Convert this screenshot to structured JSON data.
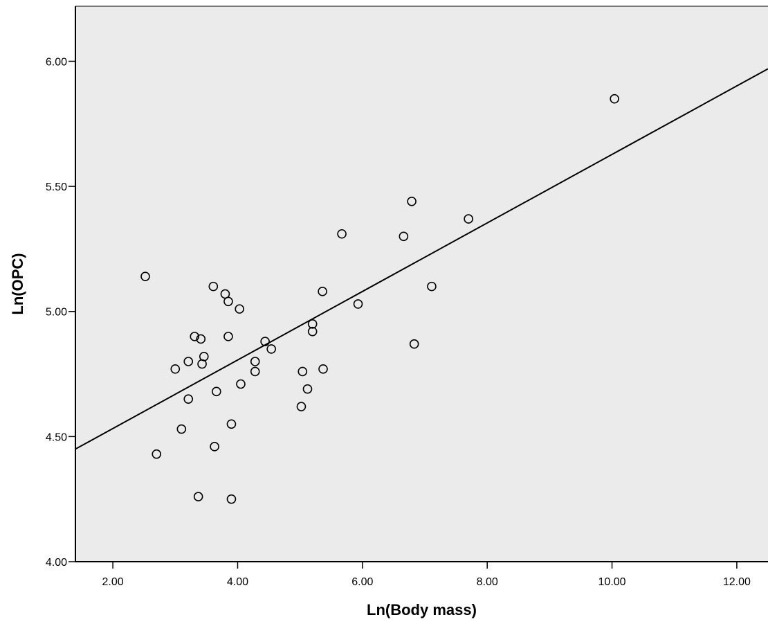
{
  "colors": {
    "plot_background": "#ebebeb",
    "axis": "#000000",
    "marker_stroke": "#000000",
    "fit_line": "#000000"
  },
  "chart_data": {
    "type": "scatter",
    "title": "",
    "xlabel": "Ln(Body mass)",
    "ylabel": "Ln(OPC)",
    "xlim": [
      1.4,
      12.5
    ],
    "ylim": [
      4.0,
      6.22
    ],
    "xticks": [
      2.0,
      4.0,
      6.0,
      8.0,
      10.0,
      12.0
    ],
    "xtick_labels": [
      "2.00",
      "4.00",
      "6.00",
      "8.00",
      "10.00",
      "12.00"
    ],
    "yticks": [
      4.0,
      4.5,
      5.0,
      5.5,
      6.0
    ],
    "ytick_labels": [
      "4.00",
      "4.50",
      "5.00",
      "5.50",
      "6.00"
    ],
    "grid": false,
    "legend": "none",
    "marker": "open-circle",
    "fit_line": {
      "x": [
        1.4,
        12.5
      ],
      "y": [
        4.45,
        5.97
      ]
    },
    "points": [
      {
        "x": 2.52,
        "y": 5.14
      },
      {
        "x": 2.7,
        "y": 4.43
      },
      {
        "x": 3.0,
        "y": 4.77
      },
      {
        "x": 3.1,
        "y": 4.53
      },
      {
        "x": 3.21,
        "y": 4.8
      },
      {
        "x": 3.21,
        "y": 4.65
      },
      {
        "x": 3.31,
        "y": 4.9
      },
      {
        "x": 3.37,
        "y": 4.26
      },
      {
        "x": 3.41,
        "y": 4.89
      },
      {
        "x": 3.43,
        "y": 4.79
      },
      {
        "x": 3.46,
        "y": 4.82
      },
      {
        "x": 3.61,
        "y": 5.1
      },
      {
        "x": 3.63,
        "y": 4.46
      },
      {
        "x": 3.66,
        "y": 4.68
      },
      {
        "x": 3.8,
        "y": 5.07
      },
      {
        "x": 3.85,
        "y": 5.04
      },
      {
        "x": 3.85,
        "y": 4.9
      },
      {
        "x": 3.9,
        "y": 4.55
      },
      {
        "x": 3.9,
        "y": 4.25
      },
      {
        "x": 4.03,
        "y": 5.01
      },
      {
        "x": 4.05,
        "y": 4.71
      },
      {
        "x": 4.28,
        "y": 4.8
      },
      {
        "x": 4.28,
        "y": 4.76
      },
      {
        "x": 4.44,
        "y": 4.88
      },
      {
        "x": 4.54,
        "y": 4.85
      },
      {
        "x": 5.02,
        "y": 4.62
      },
      {
        "x": 5.04,
        "y": 4.76
      },
      {
        "x": 5.12,
        "y": 4.69
      },
      {
        "x": 5.2,
        "y": 4.95
      },
      {
        "x": 5.2,
        "y": 4.92
      },
      {
        "x": 5.36,
        "y": 5.08
      },
      {
        "x": 5.37,
        "y": 4.77
      },
      {
        "x": 5.67,
        "y": 5.31
      },
      {
        "x": 5.93,
        "y": 5.03
      },
      {
        "x": 6.66,
        "y": 5.3
      },
      {
        "x": 6.79,
        "y": 5.44
      },
      {
        "x": 6.83,
        "y": 4.87
      },
      {
        "x": 7.11,
        "y": 5.1
      },
      {
        "x": 7.7,
        "y": 5.37
      },
      {
        "x": 10.04,
        "y": 5.85
      }
    ]
  }
}
